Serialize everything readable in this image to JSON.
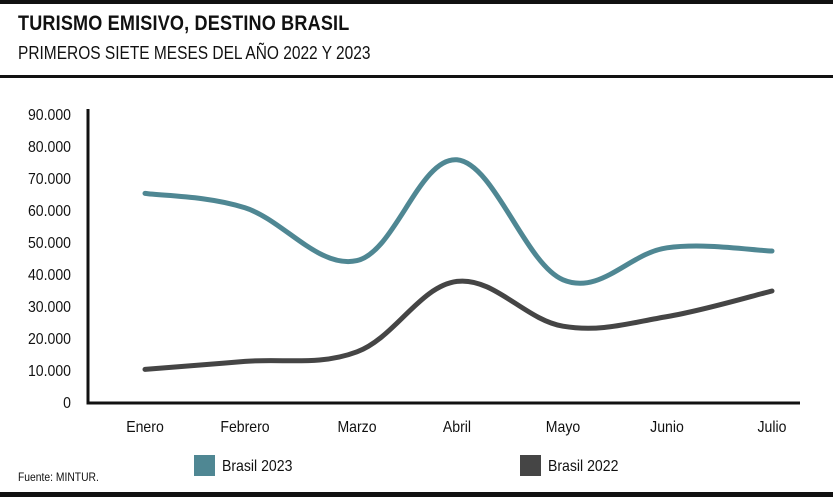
{
  "header": {
    "title": "TURISMO EMISIVO, DESTINO BRASIL",
    "subtitle": "PRIMEROS SIETE MESES DEL AÑO 2022 Y 2023"
  },
  "footer": {
    "source": "Fuente: MINTUR."
  },
  "chart_data": {
    "type": "line",
    "title": "TURISMO EMISIVO, DESTINO BRASIL",
    "subtitle": "PRIMEROS SIETE MESES DEL AÑO 2022 Y 2023",
    "xlabel": "",
    "ylabel": "",
    "categories": [
      "Enero",
      "Febrero",
      "Marzo",
      "Abril",
      "Mayo",
      "Junio",
      "Julio"
    ],
    "ylim": [
      0,
      90000
    ],
    "yticks": [
      0,
      10000,
      20000,
      30000,
      40000,
      50000,
      60000,
      70000,
      80000,
      90000
    ],
    "ytick_labels": [
      "0",
      "10.000",
      "20.000",
      "30.000",
      "40.000",
      "50.000",
      "60.000",
      "70.000",
      "80.000",
      "90.000"
    ],
    "grid": false,
    "legend_position": "bottom",
    "series": [
      {
        "name": "Brasil 2023",
        "color": "#4f8793",
        "values": [
          65500,
          61000,
          44500,
          76000,
          38500,
          48500,
          47500
        ]
      },
      {
        "name": "Brasil 2022",
        "color": "#454545",
        "values": [
          10500,
          13000,
          16000,
          38000,
          24000,
          27000,
          35000
        ]
      }
    ]
  }
}
